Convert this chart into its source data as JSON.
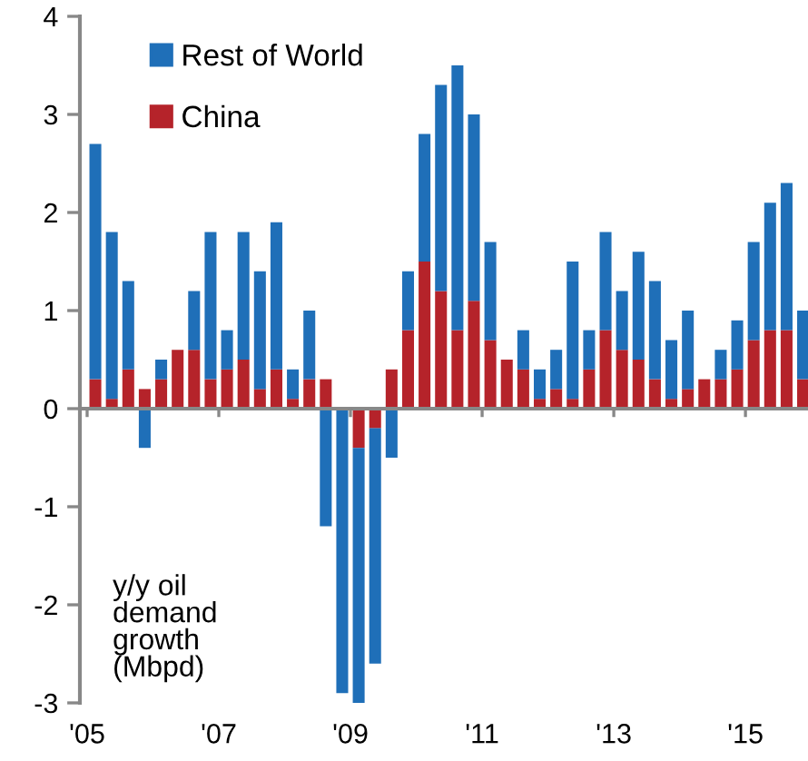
{
  "chart_data": {
    "type": "bar",
    "stacked": true,
    "ylabel": "y/y oil\ndemand\ngrowth\n(Mbpd)",
    "x": [
      2005.125,
      2005.375,
      2005.625,
      2005.875,
      2006.125,
      2006.375,
      2006.625,
      2006.875,
      2007.125,
      2007.375,
      2007.625,
      2007.875,
      2008.125,
      2008.375,
      2008.625,
      2008.875,
      2009.125,
      2009.375,
      2009.625,
      2009.875,
      2010.125,
      2010.375,
      2010.625,
      2010.875,
      2011.125,
      2011.375,
      2011.625,
      2011.875,
      2012.125,
      2012.375,
      2012.625,
      2012.875,
      2013.125,
      2013.375,
      2013.625,
      2013.875,
      2014.125,
      2014.375,
      2014.625,
      2014.875,
      2015.125,
      2015.375,
      2015.625,
      2015.875
    ],
    "series": [
      {
        "name": "China",
        "color": "#b5232a",
        "values": [
          0.3,
          0.1,
          0.4,
          0.2,
          0.3,
          0.6,
          0.6,
          0.3,
          0.4,
          0.5,
          0.2,
          0.4,
          0.1,
          0.3,
          0.3,
          0,
          -0.4,
          -0.2,
          0.4,
          0.8,
          1.5,
          1.2,
          0.8,
          1.1,
          0.7,
          0.5,
          0.4,
          0.1,
          0.2,
          0.1,
          0.4,
          0.8,
          0.6,
          0.5,
          0.3,
          0.1,
          0.2,
          0.3,
          0.3,
          0.4,
          0.7,
          0.8,
          0.8,
          0.3
        ]
      },
      {
        "name": "Rest of World",
        "color": "#1f6fb8",
        "values": [
          2.4,
          1.7,
          0.9,
          -0.4,
          0.2,
          0,
          0.6,
          1.5,
          0.4,
          1.3,
          1.2,
          1.5,
          0.3,
          0.7,
          -1.2,
          -2.9,
          -2.6,
          -2.4,
          -0.5,
          0.6,
          1.3,
          2.1,
          2.7,
          1.9,
          1.0,
          0,
          0.4,
          0.3,
          0.4,
          1.4,
          0.4,
          1.0,
          0.6,
          1.1,
          1.0,
          0.6,
          0.8,
          0,
          0.3,
          0.5,
          1.0,
          1.3,
          1.5,
          0.7
        ]
      }
    ],
    "xlim": [
      2004.89,
      2015.95
    ],
    "xticks": [
      {
        "value": 2005,
        "label": "'05"
      },
      {
        "value": 2007,
        "label": "'07"
      },
      {
        "value": 2009,
        "label": "'09"
      },
      {
        "value": 2011,
        "label": "'11"
      },
      {
        "value": 2013,
        "label": "'13"
      },
      {
        "value": 2015,
        "label": "'15"
      }
    ],
    "ylim": [
      -3,
      4
    ],
    "yticks": [
      -3,
      -2,
      -1,
      0,
      1,
      2,
      3,
      4
    ],
    "legend": "top left"
  }
}
